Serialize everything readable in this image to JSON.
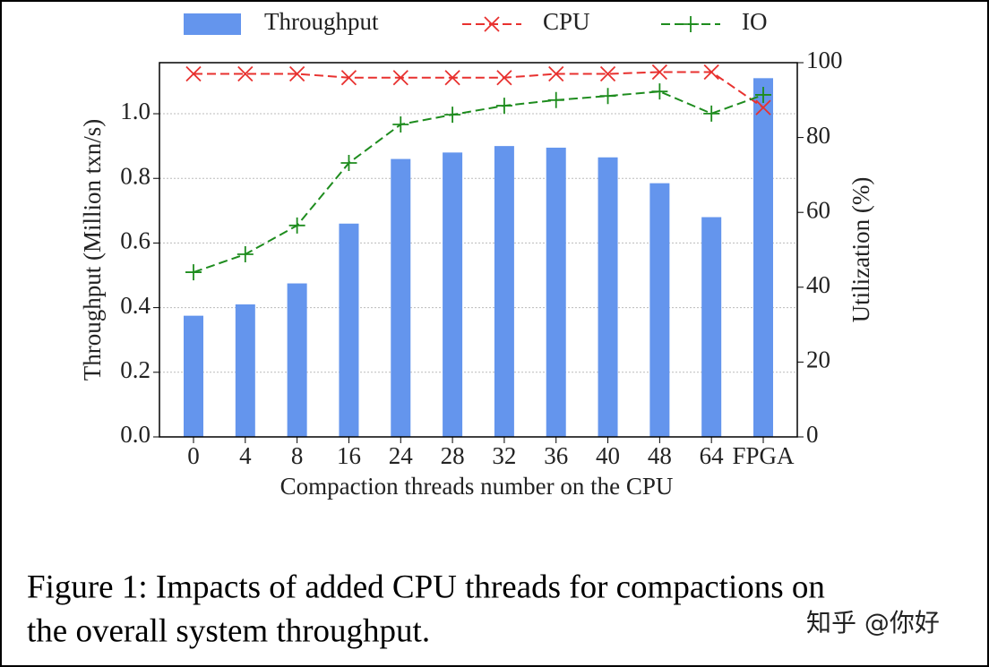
{
  "chart_data": {
    "type": "bar_line",
    "x_label": "Compaction threads number on the CPU",
    "y_label": "Throughput (Million txn/s)",
    "y2_label": "Utilization (%)",
    "categories": [
      "0",
      "4",
      "8",
      "16",
      "24",
      "28",
      "32",
      "36",
      "40",
      "48",
      "64",
      "FPGA"
    ],
    "series": [
      {
        "name": "Throughput",
        "color": "#6495ed",
        "kind": "bar",
        "values": [
          0.375,
          0.41,
          0.475,
          0.66,
          0.86,
          0.88,
          0.9,
          0.895,
          0.865,
          0.785,
          0.68,
          1.11
        ]
      },
      {
        "name": "CPU",
        "color": "#e8312f",
        "kind": "line",
        "marker": "x",
        "axis": "y2",
        "values": [
          97,
          97,
          97,
          96,
          96,
          96,
          96,
          97,
          97,
          97.5,
          97.5,
          88
        ]
      },
      {
        "name": "IO",
        "color": "#1e8c1e",
        "kind": "line",
        "marker": "+",
        "axis": "y2",
        "values": [
          44,
          48.8,
          56.5,
          73.2,
          83.5,
          86.1,
          88.5,
          90,
          91.1,
          92.3,
          86.4,
          91.4
        ]
      }
    ],
    "ylim": [
      0,
      1.158
    ],
    "yticks": [
      {
        "value": 0,
        "label": "0.0"
      },
      {
        "value": 0.2,
        "label": "0.2"
      },
      {
        "value": 0.4,
        "label": "0.4"
      },
      {
        "value": 0.6,
        "label": "0.6"
      },
      {
        "value": 0.8,
        "label": "0.8"
      },
      {
        "value": 1,
        "label": "1.0"
      }
    ],
    "y2lim": [
      0,
      100
    ],
    "y2ticks": [
      0,
      20,
      40,
      60,
      80,
      100
    ],
    "grid": true,
    "legend": "top"
  },
  "caption": [
    "Figure 1: Impacts of added CPU threads for compactions on",
    "the overall system throughput."
  ],
  "watermark": "知乎 @你好"
}
